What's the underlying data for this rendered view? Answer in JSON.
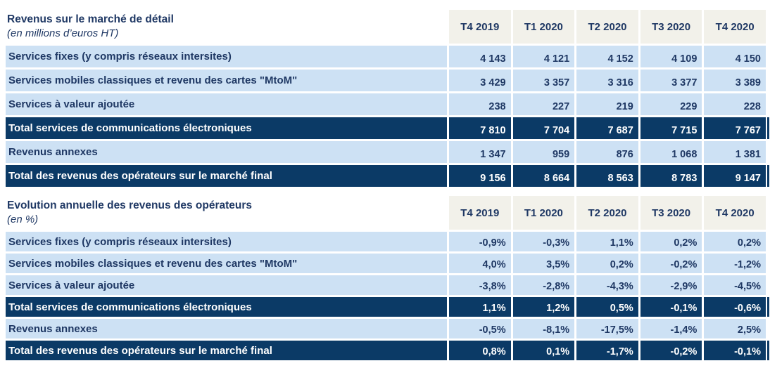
{
  "colors": {
    "header_bg": "#F2F1EA",
    "row_light_bg": "#CDE1F4",
    "row_dark_bg": "#0B3A66",
    "text_navy": "#1F3864",
    "text_white": "#FFFFFF"
  },
  "chart_data": [
    {
      "type": "table",
      "title": "Revenus sur le marché de détail",
      "subtitle": "(en millions d’euros HT)",
      "columns": [
        "T4 2019",
        "T1 2020",
        "T2 2020",
        "T3 2020",
        "T4 2020"
      ],
      "rows": [
        {
          "label": "Services fixes (y compris réseaux intersites)",
          "style": "light",
          "values": [
            "4 143",
            "4 121",
            "4 152",
            "4 109",
            "4 150"
          ]
        },
        {
          "label": "Services mobiles classiques et revenu des cartes \"MtoM\"",
          "style": "light",
          "values": [
            "3 429",
            "3 357",
            "3 316",
            "3 377",
            "3 389"
          ]
        },
        {
          "label": "Services à valeur ajoutée",
          "style": "light",
          "values": [
            "238",
            "227",
            "219",
            "229",
            "228"
          ]
        },
        {
          "label": "Total services de communications électroniques",
          "style": "dark",
          "values": [
            "7 810",
            "7 704",
            "7 687",
            "7 715",
            "7 767"
          ]
        },
        {
          "label": "Revenus annexes",
          "style": "light",
          "values": [
            "1 347",
            "959",
            "876",
            "1 068",
            "1 381"
          ]
        },
        {
          "label": "Total des revenus des opérateurs sur le marché final",
          "style": "dark",
          "values": [
            "9 156",
            "8 664",
            "8 563",
            "8 783",
            "9 147"
          ]
        }
      ]
    },
    {
      "type": "table",
      "title": "Evolution annuelle des revenus des opérateurs",
      "subtitle": "(en %)",
      "columns": [
        "T4 2019",
        "T1 2020",
        "T2 2020",
        "T3 2020",
        "T4 2020"
      ],
      "rows": [
        {
          "label": "Services fixes (y compris réseaux intersites)",
          "style": "light",
          "values": [
            "-0,9%",
            "-0,3%",
            "1,1%",
            "0,2%",
            "0,2%"
          ]
        },
        {
          "label": "Services mobiles classiques et revenu des cartes \"MtoM\"",
          "style": "light",
          "values": [
            "4,0%",
            "3,5%",
            "0,2%",
            "-0,2%",
            "-1,2%"
          ]
        },
        {
          "label": "Services à valeur ajoutée",
          "style": "light",
          "values": [
            "-3,8%",
            "-2,8%",
            "-4,3%",
            "-2,9%",
            "-4,5%"
          ]
        },
        {
          "label": "Total services de communications électroniques",
          "style": "dark",
          "values": [
            "1,1%",
            "1,2%",
            "0,5%",
            "-0,1%",
            "-0,6%"
          ]
        },
        {
          "label": "Revenus annexes",
          "style": "light",
          "values": [
            "-0,5%",
            "-8,1%",
            "-17,5%",
            "-1,4%",
            "2,5%"
          ]
        },
        {
          "label": "Total des revenus des opérateurs sur le marché final",
          "style": "dark",
          "values": [
            "0,8%",
            "0,1%",
            "-1,7%",
            "-0,2%",
            "-0,1%"
          ]
        }
      ]
    }
  ]
}
